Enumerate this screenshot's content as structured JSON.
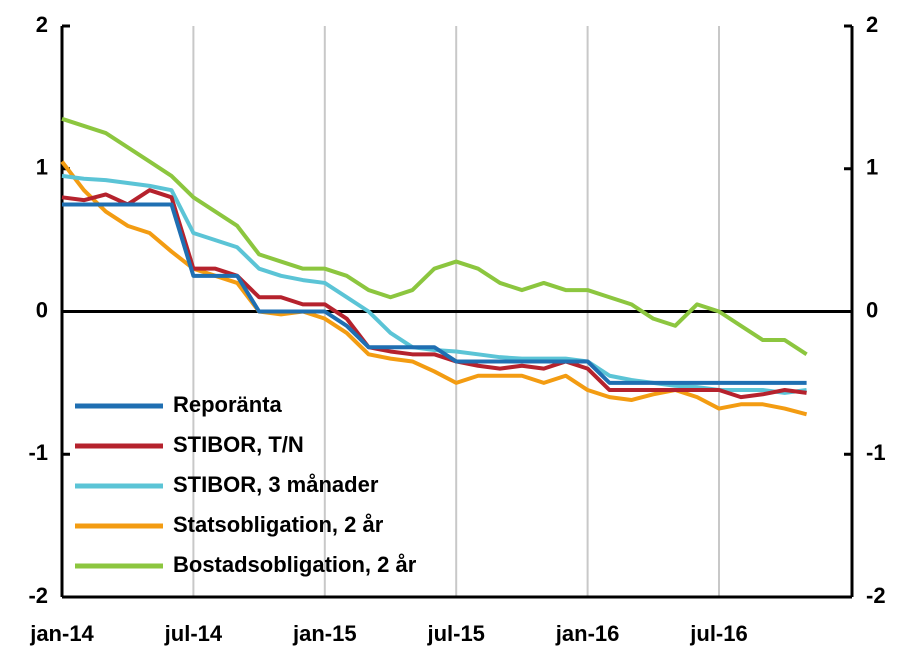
{
  "chart_data": {
    "type": "line",
    "categories": [
      "jan-14",
      null,
      null,
      null,
      null,
      null,
      "jul-14",
      null,
      null,
      null,
      null,
      null,
      "jan-15",
      null,
      null,
      null,
      null,
      null,
      "jul-15",
      null,
      null,
      null,
      null,
      null,
      "jan-16",
      null,
      null,
      null,
      null,
      null,
      "jul-16",
      null,
      null,
      null,
      null
    ],
    "series": [
      {
        "name": "Reporänta",
        "color": "#1f6fb2",
        "values": [
          0.75,
          0.75,
          0.75,
          0.75,
          0.75,
          0.75,
          0.25,
          0.25,
          0.25,
          0,
          0,
          0,
          0,
          -0.1,
          -0.25,
          -0.25,
          -0.25,
          -0.25,
          -0.35,
          -0.35,
          -0.35,
          -0.35,
          -0.35,
          -0.35,
          -0.35,
          -0.5,
          -0.5,
          -0.5,
          -0.5,
          -0.5,
          -0.5,
          -0.5,
          -0.5,
          -0.5,
          -0.5
        ]
      },
      {
        "name": "STIBOR, T/N",
        "color": "#b5222d",
        "values": [
          0.8,
          0.78,
          0.82,
          0.75,
          0.85,
          0.8,
          0.3,
          0.3,
          0.25,
          0.1,
          0.1,
          0.05,
          0.05,
          -0.05,
          -0.25,
          -0.28,
          -0.3,
          -0.3,
          -0.35,
          -0.38,
          -0.4,
          -0.38,
          -0.4,
          -0.35,
          -0.4,
          -0.55,
          -0.55,
          -0.55,
          -0.55,
          -0.55,
          -0.55,
          -0.6,
          -0.58,
          -0.55,
          -0.57
        ]
      },
      {
        "name": "STIBOR, 3 månader",
        "color": "#5bc4d6",
        "values": [
          0.95,
          0.93,
          0.92,
          0.9,
          0.88,
          0.85,
          0.55,
          0.5,
          0.45,
          0.3,
          0.25,
          0.22,
          0.2,
          0.1,
          0,
          -0.15,
          -0.25,
          -0.27,
          -0.28,
          -0.3,
          -0.32,
          -0.33,
          -0.33,
          -0.33,
          -0.35,
          -0.45,
          -0.48,
          -0.5,
          -0.52,
          -0.53,
          -0.55,
          -0.55,
          -0.55,
          -0.57,
          -0.55
        ]
      },
      {
        "name": "Statsobligation, 2 år",
        "color": "#f39c12",
        "values": [
          1.05,
          0.85,
          0.7,
          0.6,
          0.55,
          0.42,
          0.3,
          0.25,
          0.2,
          0,
          -0.02,
          0,
          -0.05,
          -0.15,
          -0.3,
          -0.33,
          -0.35,
          -0.42,
          -0.5,
          -0.45,
          -0.45,
          -0.45,
          -0.5,
          -0.45,
          -0.55,
          -0.6,
          -0.62,
          -0.58,
          -0.55,
          -0.6,
          -0.68,
          -0.65,
          -0.65,
          -0.68,
          -0.72
        ]
      },
      {
        "name": "Bostadsobligation, 2 år",
        "color": "#8cc63f",
        "values": [
          1.35,
          1.3,
          1.25,
          1.15,
          1.05,
          0.95,
          0.8,
          0.7,
          0.6,
          0.4,
          0.35,
          0.3,
          0.3,
          0.25,
          0.15,
          0.1,
          0.15,
          0.3,
          0.35,
          0.3,
          0.2,
          0.15,
          0.2,
          0.15,
          0.15,
          0.1,
          0.05,
          -0.05,
          -0.1,
          0.05,
          0,
          -0.1,
          -0.2,
          -0.2,
          -0.3
        ]
      }
    ],
    "ylim": [
      -2,
      2
    ],
    "yticks": [
      -2,
      -1,
      0,
      1,
      2
    ],
    "y2lim": [
      -2,
      2
    ],
    "y2ticks": [
      -2,
      -1,
      0,
      1,
      2
    ],
    "grid": true,
    "legend": "lower left"
  }
}
